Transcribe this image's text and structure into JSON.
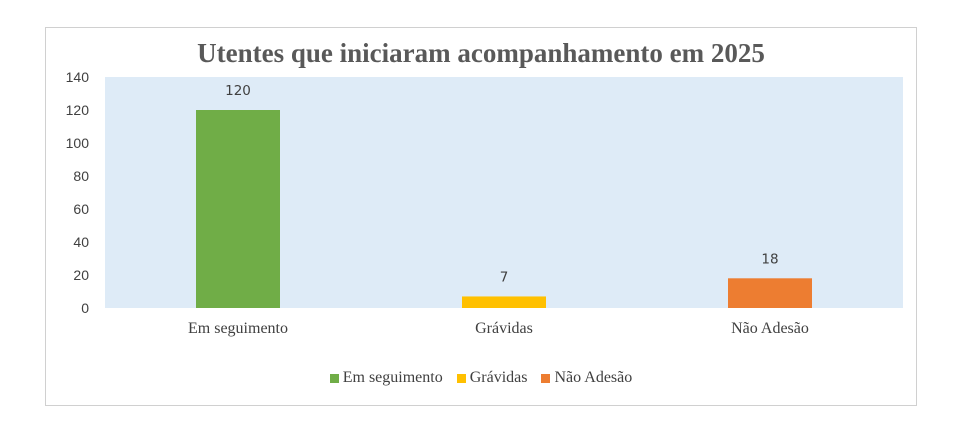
{
  "chart_data": {
    "type": "bar",
    "title": "Utentes que iniciaram acompanhamento em 2025",
    "categories": [
      "Em seguimento",
      "Grávidas",
      "Não Adesão"
    ],
    "values": [
      120,
      7,
      18
    ],
    "colors": [
      "#70ad47",
      "#ffc000",
      "#ed7d31"
    ],
    "ylim": [
      0,
      140
    ],
    "yticks": [
      0,
      20,
      40,
      60,
      80,
      100,
      120,
      140
    ],
    "plot_background": "#deebf7",
    "grid": false,
    "legend": {
      "position": "bottom",
      "entries": [
        "Em seguimento",
        "Grávidas",
        "Não Adesão"
      ]
    }
  }
}
